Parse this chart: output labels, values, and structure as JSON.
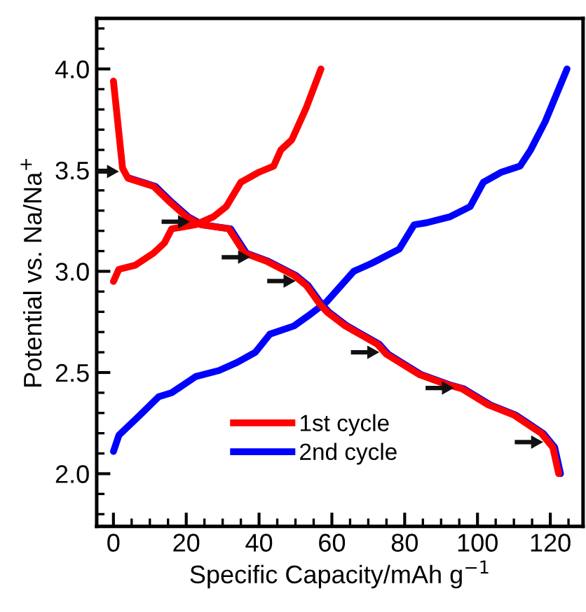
{
  "chart_data": {
    "type": "line",
    "xlabel": "Specific Capacity/mAh g$^{−1}$",
    "ylabel": "Potential vs. Na/Na$^{+}$",
    "xlim": [
      -4.6,
      129
    ],
    "ylim": [
      1.74,
      4.25
    ],
    "xticks": [
      0,
      20,
      40,
      60,
      80,
      100,
      120
    ],
    "yticks": [
      {
        "value": 2.0,
        "label": "2.0"
      },
      {
        "value": 2.5,
        "label": "2.5"
      },
      {
        "value": 3.0,
        "label": "3.0"
      },
      {
        "value": 3.5,
        "label": "3.5"
      },
      {
        "value": 4.0,
        "label": "4.0"
      }
    ],
    "legend": "bottom",
    "grid": false,
    "line_style": "solid",
    "marker": "none",
    "series": [
      {
        "name": "2nd cycle",
        "color": "#0000ff",
        "x": [
          0,
          1.5,
          7.3,
          12.4,
          16,
          22.6,
          29,
          34,
          39,
          43,
          49.6,
          53.5,
          58.6,
          66,
          71,
          78.5,
          82.6,
          86,
          92.5,
          98,
          101.6,
          106.6,
          111.7,
          114.6,
          118.6,
          124.6
        ],
        "values": [
          2.11,
          2.19,
          2.29,
          2.38,
          2.4,
          2.48,
          2.51,
          2.55,
          2.6,
          2.69,
          2.73,
          2.78,
          2.85,
          3.0,
          3.04,
          3.11,
          3.23,
          3.24,
          3.27,
          3.32,
          3.44,
          3.49,
          3.52,
          3.6,
          3.74,
          4.0
        ]
      },
      {
        "color": "#0000ff",
        "x": [
          4.5,
          11.5,
          15.5,
          20.5,
          24.5,
          32.2,
          36.5,
          42.5,
          50.1,
          53.5,
          57.1,
          59.1,
          64.2,
          73,
          75.5,
          84.5,
          92.2,
          96.2,
          103.5,
          110.5,
          118,
          121.2,
          122.8
        ],
        "values": [
          3.46,
          3.42,
          3.35,
          3.27,
          3.23,
          3.21,
          3.09,
          3.05,
          2.98,
          2.93,
          2.84,
          2.8,
          2.73,
          2.64,
          2.59,
          2.49,
          2.44,
          2.42,
          2.34,
          2.29,
          2.2,
          2.13,
          2.0
        ]
      },
      {
        "name": "1st cycle",
        "color": "#ff0000",
        "x": [
          0,
          1.5,
          6,
          11,
          14,
          16,
          22.5,
          27.5,
          31,
          35,
          40,
          44,
          46,
          49,
          53,
          57
        ],
        "values": [
          2.95,
          3.01,
          3.03,
          3.09,
          3.14,
          3.21,
          3.23,
          3.27,
          3.32,
          3.44,
          3.49,
          3.52,
          3.6,
          3.65,
          3.81,
          4.0
        ]
      },
      {
        "color": "#ff0000",
        "x": [
          0,
          2.5,
          4,
          11,
          15,
          20,
          24,
          31.7,
          36,
          42,
          49.6,
          53,
          56.6,
          58.6,
          63.7,
          72.5,
          75,
          84,
          91.7,
          95.7,
          103,
          110,
          117.5,
          120.7,
          122.3
        ],
        "values": [
          3.94,
          3.51,
          3.46,
          3.42,
          3.35,
          3.27,
          3.23,
          3.21,
          3.09,
          3.05,
          2.98,
          2.93,
          2.84,
          2.8,
          2.73,
          2.64,
          2.59,
          2.49,
          2.44,
          2.42,
          2.34,
          2.29,
          2.2,
          2.13,
          2.0
        ]
      }
    ]
  }
}
